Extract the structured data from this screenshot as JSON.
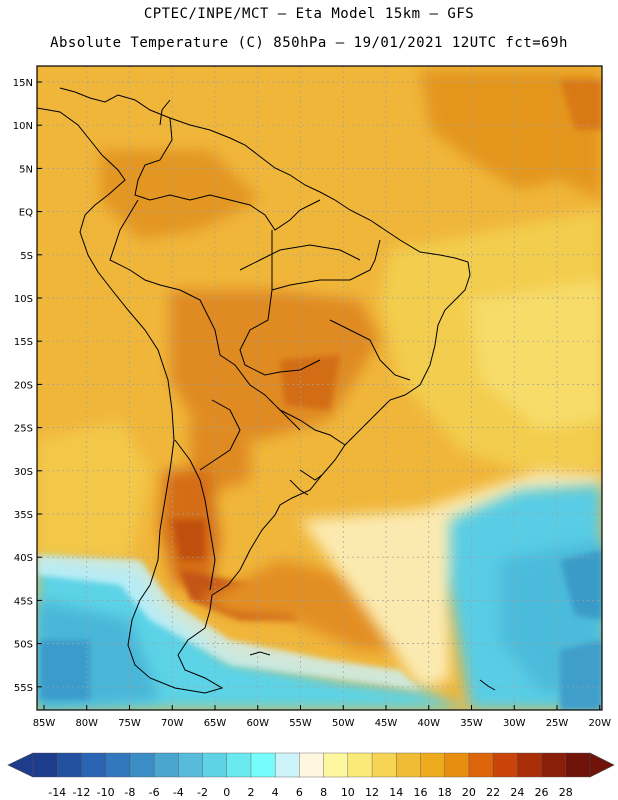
{
  "title_line1": "CPTEC/INPE/MCT –  Eta Model 15km – GFS",
  "title_line2": "Absolute Temperature (C) 850hPa – 19/01/2021 12UTC fct=69h",
  "lat_labels": [
    "15N",
    "10N",
    "5N",
    "EQ",
    "5S",
    "10S",
    "15S",
    "20S",
    "25S",
    "30S",
    "35S",
    "40S",
    "45S",
    "50S",
    "55S"
  ],
  "lon_labels": [
    "85W",
    "80W",
    "75W",
    "70W",
    "65W",
    "60W",
    "55W",
    "50W",
    "45W",
    "40W",
    "35W",
    "30W",
    "25W",
    "20W"
  ],
  "colorbar": {
    "labels": [
      "-14",
      "-12",
      "-10",
      "-8",
      "-6",
      "-4",
      "-2",
      "0",
      "2",
      "4",
      "6",
      "8",
      "10",
      "12",
      "14",
      "16",
      "18",
      "20",
      "22",
      "24",
      "26",
      "28"
    ],
    "colors": [
      "#1e3c8c",
      "#23509f",
      "#2a64b2",
      "#3278bd",
      "#3b8dc6",
      "#4aa5cf",
      "#57bbdc",
      "#5fd3e6",
      "#6ae9f0",
      "#78fbfb",
      "#cdf3fb",
      "#fff6e0",
      "#fdf7a0",
      "#fcea78",
      "#f6d454",
      "#f0bc36",
      "#ecaa1c",
      "#e78d0f",
      "#dc640a",
      "#c84408",
      "#a82e08",
      "#8a1e08",
      "#70140a"
    ]
  },
  "colors": {
    "frame": "#000000",
    "grid": "#a0a0a0",
    "warm_base": "#f0b63a",
    "hot": "#e28a1e",
    "very_hot": "#c8540f",
    "yellow": "#f5d555",
    "pale": "#fdf6d8",
    "cold_light": "#6ae9f0",
    "cold": "#4cc4df",
    "cold_deep": "#3a9ecb"
  }
}
